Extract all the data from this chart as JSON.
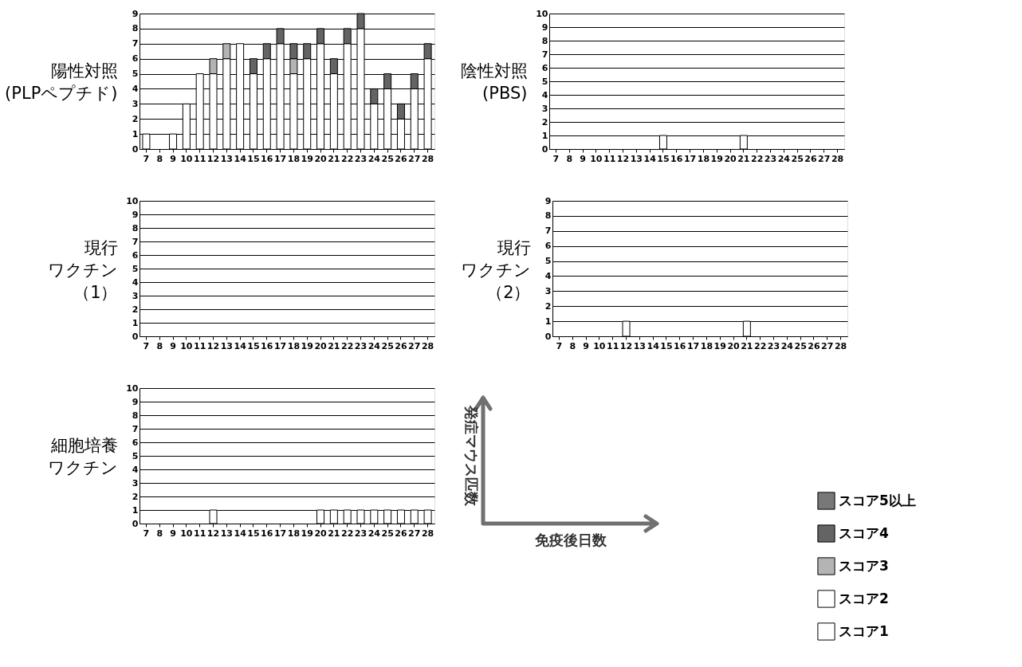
{
  "chart_data": [
    {
      "type": "bar",
      "stacked": true,
      "ylabel": "陽性対照(PLPペプチド)",
      "categories": [
        "7",
        "8",
        "9",
        "10",
        "11",
        "12",
        "13",
        "14",
        "15",
        "16",
        "17",
        "18",
        "19",
        "20",
        "21",
        "22",
        "23",
        "24",
        "25",
        "26",
        "27",
        "28"
      ],
      "ylim": [
        0,
        9
      ],
      "yticks": [
        0,
        1,
        2,
        3,
        4,
        5,
        6,
        7,
        8,
        9
      ],
      "grid": "y",
      "legend": "bottom right",
      "series": [
        {
          "name": "スコア1",
          "color": "#ffffff",
          "values": [
            1,
            null,
            1,
            3,
            5,
            5,
            6,
            7,
            5,
            6,
            7,
            5,
            6,
            7,
            5,
            7,
            8,
            3,
            4,
            2,
            4,
            6
          ]
        },
        {
          "name": "スコア2",
          "color": "#ffffff",
          "values": [
            null,
            null,
            null,
            null,
            null,
            null,
            null,
            null,
            null,
            null,
            null,
            null,
            null,
            null,
            null,
            null,
            null,
            null,
            null,
            null,
            null,
            null
          ]
        },
        {
          "name": "スコア3",
          "color": "#b4b4b4",
          "values": [
            null,
            null,
            null,
            null,
            null,
            1,
            1,
            null,
            null,
            null,
            null,
            1,
            null,
            null,
            null,
            null,
            null,
            null,
            null,
            null,
            null,
            null
          ]
        },
        {
          "name": "スコア4",
          "color": "#646464",
          "values": [
            null,
            null,
            null,
            null,
            null,
            null,
            null,
            null,
            1,
            1,
            1,
            1,
            1,
            1,
            1,
            1,
            1,
            1,
            1,
            1,
            1,
            1
          ]
        },
        {
          "name": "スコア5以上",
          "color": "#787878",
          "values": [
            null,
            null,
            null,
            null,
            null,
            null,
            null,
            null,
            null,
            null,
            null,
            null,
            null,
            null,
            null,
            null,
            null,
            null,
            null,
            null,
            null,
            null
          ]
        }
      ]
    },
    {
      "type": "bar",
      "stacked": true,
      "ylabel": "陰性対照(PBS)",
      "categories": [
        "7",
        "8",
        "9",
        "10",
        "11",
        "12",
        "13",
        "14",
        "15",
        "16",
        "17",
        "18",
        "19",
        "20",
        "21",
        "22",
        "23",
        "24",
        "25",
        "26",
        "27",
        "28"
      ],
      "ylim": [
        0,
        10
      ],
      "yticks": [
        0,
        1,
        2,
        3,
        4,
        5,
        6,
        7,
        8,
        9,
        10
      ],
      "grid": "y",
      "series": [
        {
          "color": "#ffffff",
          "values": [
            null,
            null,
            null,
            null,
            null,
            null,
            null,
            null,
            1,
            null,
            null,
            null,
            null,
            null,
            1,
            null,
            null,
            null,
            null,
            null,
            null,
            null
          ]
        }
      ]
    },
    {
      "type": "bar",
      "stacked": true,
      "ylabel": "現行ワクチン（1）",
      "categories": [
        "7",
        "8",
        "9",
        "10",
        "11",
        "12",
        "13",
        "14",
        "15",
        "16",
        "17",
        "18",
        "19",
        "20",
        "21",
        "22",
        "23",
        "24",
        "25",
        "26",
        "27",
        "28"
      ],
      "ylim": [
        0,
        10
      ],
      "yticks": [
        0,
        1,
        2,
        3,
        4,
        5,
        6,
        7,
        8,
        9,
        10
      ],
      "grid": "y",
      "series": [
        {
          "color": "#ffffff",
          "values": [
            null,
            null,
            null,
            null,
            null,
            null,
            null,
            null,
            null,
            null,
            null,
            null,
            null,
            null,
            null,
            null,
            null,
            null,
            null,
            null,
            null,
            null
          ]
        }
      ]
    },
    {
      "type": "bar",
      "stacked": true,
      "ylabel": "現行ワクチン（2）",
      "categories": [
        "7",
        "8",
        "9",
        "10",
        "11",
        "12",
        "13",
        "14",
        "15",
        "16",
        "17",
        "18",
        "19",
        "20",
        "21",
        "22",
        "23",
        "24",
        "25",
        "26",
        "27",
        "28"
      ],
      "ylim": [
        0,
        9
      ],
      "yticks": [
        0,
        1,
        2,
        3,
        4,
        5,
        6,
        7,
        8,
        9
      ],
      "grid": "y",
      "series": [
        {
          "color": "#ffffff",
          "values": [
            null,
            null,
            null,
            null,
            null,
            1,
            null,
            null,
            null,
            null,
            null,
            null,
            null,
            null,
            1,
            null,
            null,
            null,
            null,
            null,
            null,
            null
          ]
        }
      ]
    },
    {
      "type": "bar",
      "stacked": true,
      "ylabel": "細胞培養ワクチン",
      "categories": [
        "7",
        "8",
        "9",
        "10",
        "11",
        "12",
        "13",
        "14",
        "15",
        "16",
        "17",
        "18",
        "19",
        "20",
        "21",
        "22",
        "23",
        "24",
        "25",
        "26",
        "27",
        "28"
      ],
      "ylim": [
        0,
        10
      ],
      "yticks": [
        0,
        1,
        2,
        3,
        4,
        5,
        6,
        7,
        8,
        9,
        10
      ],
      "grid": "y",
      "series": [
        {
          "color": "#ffffff",
          "values": [
            null,
            null,
            null,
            null,
            null,
            1,
            null,
            null,
            null,
            null,
            null,
            null,
            null,
            1,
            1,
            1,
            1,
            1,
            1,
            1,
            1,
            1
          ]
        }
      ]
    },
    {
      "type": "other",
      "xlabel": "免疫後日数",
      "ylabel": "発症マウス匹数"
    }
  ]
}
